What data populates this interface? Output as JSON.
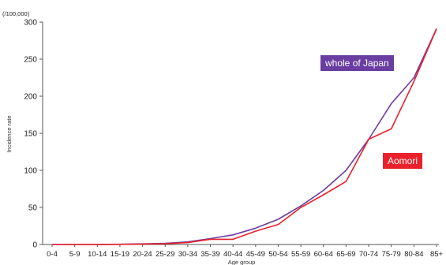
{
  "chart_data": {
    "type": "line",
    "unit_label": "(/100,000)",
    "ylabel": "Incidence rate",
    "xlabel": "Age group",
    "ylim": [
      0,
      300
    ],
    "yticks": [
      "0",
      "50",
      "100",
      "150",
      "200",
      "250",
      "300"
    ],
    "categories": [
      "0-4",
      "5-9",
      "10-14",
      "15-19",
      "20-24",
      "25-29",
      "30-34",
      "35-39",
      "40-44",
      "45-49",
      "50-54",
      "55-59",
      "60-64",
      "65-69",
      "70-74",
      "75-79",
      "80-84",
      "85+"
    ],
    "series": [
      {
        "name": "whole of Japan",
        "color": "#6a3ea1",
        "values": [
          0,
          0,
          0,
          0.3,
          0.8,
          1.5,
          3.5,
          8,
          13,
          22,
          34,
          52,
          73,
          100,
          142,
          190,
          225,
          291
        ]
      },
      {
        "name": "Aomori",
        "color": "#e8212b",
        "values": [
          0,
          0,
          0,
          0.2,
          0.6,
          1.0,
          2.5,
          7,
          7,
          18,
          27,
          50,
          67,
          85,
          142,
          156,
          220,
          291
        ]
      }
    ],
    "grid": false,
    "legend": "inline labels"
  }
}
